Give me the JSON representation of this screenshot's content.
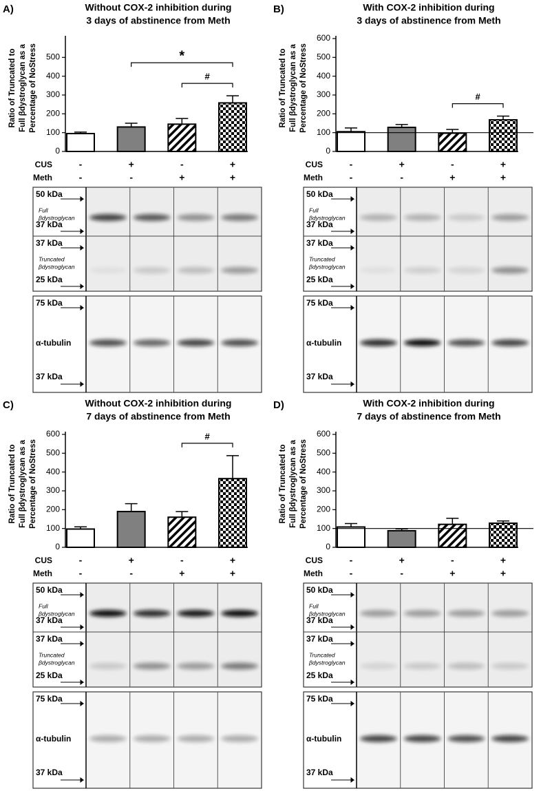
{
  "chart_data": [
    {
      "type": "bar",
      "label": "A)",
      "title": [
        "Without COX-2 inhibition during",
        "3 days of abstinence from Meth"
      ],
      "ylabel": [
        "Ratio of Truncated to",
        "Full βdystroglycan as a",
        "Percentage of NoStress"
      ],
      "values": [
        95,
        130,
        145,
        258
      ],
      "errors": [
        8,
        20,
        30,
        38
      ],
      "bar_patterns": [
        "open",
        "solid",
        "hatch",
        "checker"
      ],
      "ylim": [
        0,
        600
      ],
      "yticks": [
        0,
        100,
        200,
        300,
        400,
        500
      ],
      "conditions": [
        {
          "name": "CUS",
          "signs": [
            "-",
            "+",
            "-",
            "+"
          ]
        },
        {
          "name": "Meth",
          "signs": [
            "-",
            "-",
            "+",
            "+"
          ]
        }
      ],
      "annotations": [
        {
          "text": "#",
          "from": 2,
          "to": 3
        },
        {
          "text": "*",
          "from": 1,
          "to": 3
        }
      ],
      "blots": [
        {
          "top": "50 kDa",
          "name": [
            "Full",
            "βdystroglycan"
          ],
          "bottom": "37 kDa"
        },
        {
          "top": "37 kDa",
          "name": [
            "Truncated",
            "βdystroglycan"
          ],
          "bottom": "25 kDa"
        },
        {
          "top": "75 kDa",
          "name": [
            "α-tubulin"
          ],
          "bottom": "37 kDa"
        }
      ]
    },
    {
      "type": "bar",
      "label": "B)",
      "title": [
        "With COX-2 inhibition during",
        "3 days of abstinence from Meth"
      ],
      "ylabel": [
        "Ratio of Truncated to",
        "Full βdystroglycan as a",
        "Percentage of NoStress"
      ],
      "values": [
        105,
        128,
        97,
        168
      ],
      "errors": [
        20,
        15,
        20,
        20
      ],
      "bar_patterns": [
        "open",
        "solid",
        "hatch",
        "checker"
      ],
      "ylim": [
        0,
        600
      ],
      "yticks": [
        0,
        100,
        200,
        300,
        400,
        500,
        600
      ],
      "refline": 100,
      "conditions": [
        {
          "name": "CUS",
          "signs": [
            "-",
            "+",
            "-",
            "+"
          ]
        },
        {
          "name": "Meth",
          "signs": [
            "-",
            "-",
            "+",
            "+"
          ]
        }
      ],
      "annotations": [
        {
          "text": "#",
          "from": 2,
          "to": 3
        }
      ],
      "blots": [
        {
          "top": "50 kDa",
          "name": [
            "Full",
            "βdystroglycan"
          ],
          "bottom": "37 kDa"
        },
        {
          "top": "37 kDa",
          "name": [
            "Truncated",
            "βdystroglycan"
          ],
          "bottom": "25 kDa"
        },
        {
          "top": "75 kDa",
          "name": [
            "α-tubulin"
          ],
          "bottom": "37 kDa"
        }
      ]
    },
    {
      "type": "bar",
      "label": "C)",
      "title": [
        "Without COX-2 inhibition during",
        "7 days of abstinence from Meth"
      ],
      "ylabel": [
        "Ratio of Truncated to",
        "Full βdystroglycan as a",
        "Percentage of NoStress"
      ],
      "values": [
        97,
        190,
        160,
        365
      ],
      "errors": [
        12,
        42,
        30,
        122
      ],
      "bar_patterns": [
        "open",
        "solid",
        "hatch",
        "checker"
      ],
      "ylim": [
        0,
        600
      ],
      "yticks": [
        0,
        100,
        200,
        300,
        400,
        500,
        600
      ],
      "conditions": [
        {
          "name": "CUS",
          "signs": [
            "-",
            "+",
            "-",
            "+"
          ]
        },
        {
          "name": "Meth",
          "signs": [
            "-",
            "-",
            "+",
            "+"
          ]
        }
      ],
      "annotations": [
        {
          "text": "#",
          "from": 2,
          "to": 3
        }
      ],
      "blots": [
        {
          "top": "50 kDa",
          "name": [
            "Full",
            "βdystroglycan"
          ],
          "bottom": "37 kDa"
        },
        {
          "top": "37 kDa",
          "name": [
            "Truncated",
            "βdystroglycan"
          ],
          "bottom": "25 kDa"
        },
        {
          "top": "75 kDa",
          "name": [
            "α-tubulin"
          ],
          "bottom": "37 kDa"
        }
      ]
    },
    {
      "type": "bar",
      "label": "D)",
      "title": [
        "With COX-2 inhibition during",
        "7 days of abstinence from Meth"
      ],
      "ylabel": [
        "Ratio of Truncated to",
        "Full βdystroglycan as a",
        "Percentage of NoStress"
      ],
      "values": [
        108,
        88,
        122,
        128
      ],
      "errors": [
        18,
        10,
        32,
        12
      ],
      "bar_patterns": [
        "open",
        "solid",
        "hatch",
        "checker"
      ],
      "ylim": [
        0,
        600
      ],
      "yticks": [
        0,
        100,
        200,
        300,
        400,
        500,
        600
      ],
      "refline": 100,
      "conditions": [
        {
          "name": "CUS",
          "signs": [
            "-",
            "+",
            "-",
            "+"
          ]
        },
        {
          "name": "Meth",
          "signs": [
            "-",
            "-",
            "+",
            "+"
          ]
        }
      ],
      "annotations": [],
      "blots": [
        {
          "top": "50 kDa",
          "name": [
            "Full",
            "βdystroglycan"
          ],
          "bottom": "37 kDa"
        },
        {
          "top": "37 kDa",
          "name": [
            "Truncated",
            "βdystroglycan"
          ],
          "bottom": "25 kDa"
        },
        {
          "top": "75 kDa",
          "name": [
            "α-tubulin"
          ],
          "bottom": "37 kDa"
        }
      ]
    }
  ]
}
